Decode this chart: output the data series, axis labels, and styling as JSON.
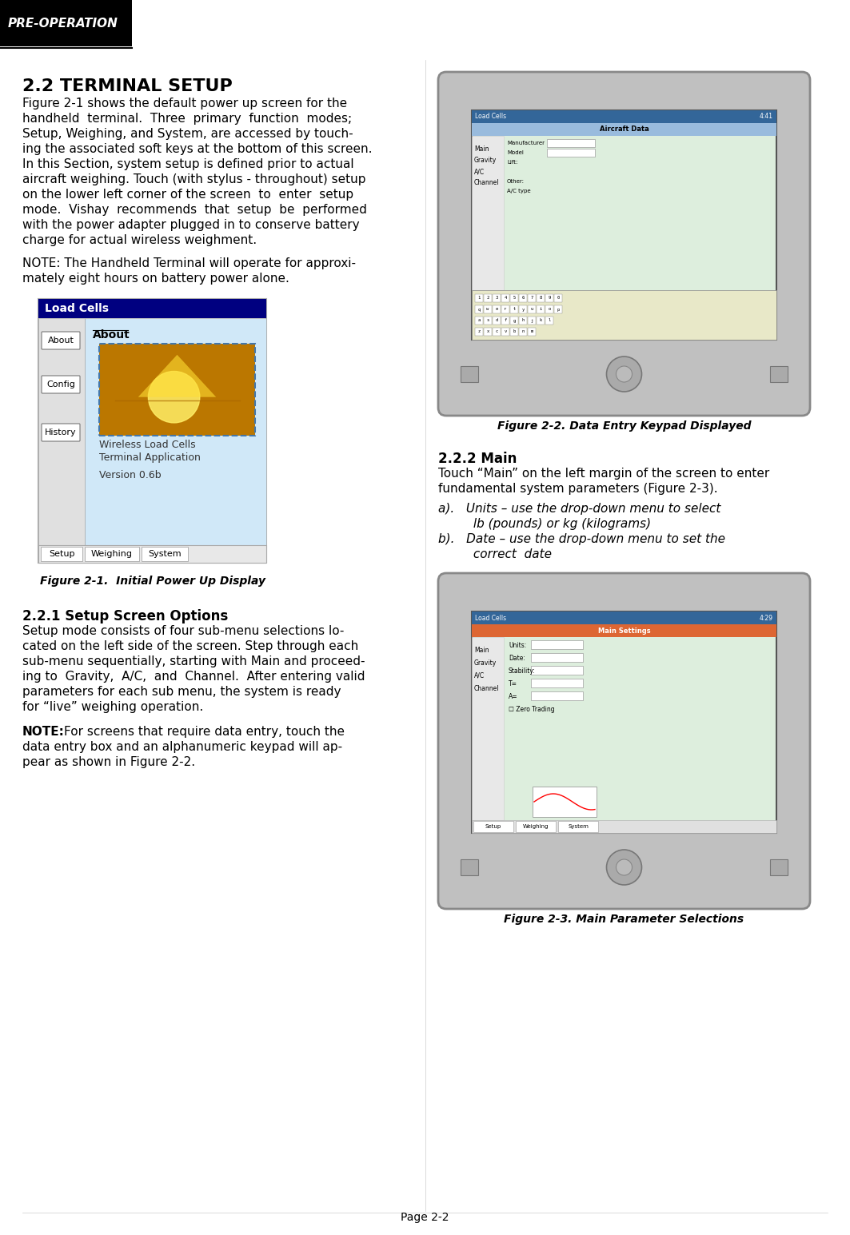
{
  "page_bg": "#ffffff",
  "header_bg": "#000000",
  "header_text": "PRE-OPERATION",
  "header_text_color": "#ffffff",
  "section_title": "2.2 TERMINAL SETUP",
  "fig1_caption": "Figure 2-1.  Initial Power Up Display",
  "fig2_caption": "Figure 2-2. Data Entry Keypad Displayed",
  "fig3_caption": "Figure 2-3. Main Parameter Selections",
  "footer_text": "Page 2-2",
  "load_cells_bar_text": "Load Cells",
  "load_cells_bar_color": "#000080",
  "section221_title": "2.2.1 Setup Screen Options",
  "section222_title": "2.2.2 Main",
  "body1_lines": [
    "Figure 2-1 shows the default power up screen for the",
    "handheld  terminal.  Three  primary  function  modes;",
    "Setup, Weighing, and System, are accessed by touch-",
    "ing the associated soft keys at the bottom of this screen.",
    "In this Section, system setup is defined prior to actual",
    "aircraft weighing. Touch (with stylus - throughout) setup",
    "on the lower left corner of the screen  to  enter  setup",
    "mode.  Vishay  recommends  that  setup  be  performed",
    "with the power adapter plugged in to conserve battery",
    "charge for actual wireless weighment."
  ],
  "note1_lines": [
    "NOTE: The Handheld Terminal will operate for approxi-",
    "mately eight hours on battery power alone."
  ],
  "section221_lines": [
    "Setup mode consists of four sub-menu selections lo-",
    "cated on the left side of the screen. Step through each",
    "sub-menu sequentially, starting with Main and proceed-",
    "ing to  Gravity,  A/C,  and  Channel.  After entering valid",
    "parameters for each sub menu, the system is ready",
    "for “live” weighing operation."
  ],
  "note2_lines": [
    "NOTE: For screens that require data entry, touch the",
    "data entry box and an alphanumeric keypad will ap-",
    "pear as shown in Figure 2-2."
  ],
  "section222_intro_lines": [
    "Touch “Main” on the left margin of the screen to enter",
    "fundamental system parameters (Figure 2-3)."
  ],
  "item_lines": [
    "a).   Units – use the drop-down menu to select",
    "         lb (pounds) or kg (kilograms)",
    "b).   Date – use the drop-down menu to set the",
    "         correct  date"
  ],
  "sidebar_buttons": [
    "About",
    "Config",
    "History"
  ],
  "tab_labels": [
    "Setup",
    "Weighing",
    "System"
  ],
  "screen1_menu": [
    "Main",
    "Gravity",
    "A/C",
    "Channel"
  ],
  "screen2_menu": [
    "Main",
    "Gravity",
    "A/C",
    "Channel"
  ],
  "screen2_fields": [
    "Units:",
    "Date:",
    "Stability:",
    "T=",
    "A="
  ],
  "key_rows": [
    "1234567890",
    "qwertyuiop",
    "asdfghjkl",
    "zxcvbnm"
  ]
}
